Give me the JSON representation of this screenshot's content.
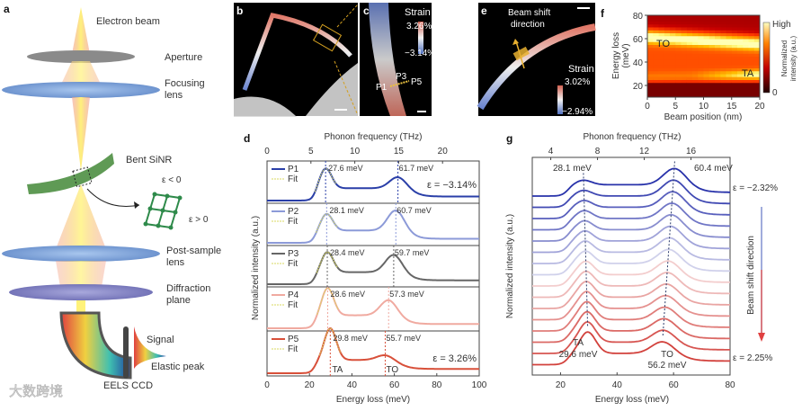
{
  "panels": {
    "a": "a",
    "b": "b",
    "c": "c",
    "d": "d",
    "e": "e",
    "f": "f",
    "g": "g"
  },
  "panel_a": {
    "electron_beam": "Electron beam",
    "aperture": "Aperture",
    "focusing_lens_1": "Focusing",
    "focusing_lens_2": "lens",
    "bent_sinr": "Bent SiNR",
    "strain_neg": "ε < 0",
    "strain_pos": "ε > 0",
    "post_sample_1": "Post-sample",
    "post_sample_2": "lens",
    "diffraction_1": "Diffraction",
    "diffraction_2": "plane",
    "signal": "Signal",
    "elastic_peak": "Elastic peak",
    "eels_ccd": "EELS CCD"
  },
  "watermark": "大数跨境",
  "panel_c": {
    "strain_title": "Strain",
    "strain_max": "3.26%",
    "strain_min": "−3.14%",
    "p1": "P1",
    "p3": "P3",
    "p5": "P5"
  },
  "panel_e": {
    "beam_shift_1": "Beam shift",
    "beam_shift_2": "direction",
    "strain_title": "Strain",
    "strain_max": "3.02%",
    "strain_min": "−2.94%"
  },
  "colors": {
    "blue": "#2a3fa8",
    "red": "#d8503a",
    "sinr_green": "#5f9a55"
  },
  "chart_data": [
    {
      "id": "d",
      "type": "line",
      "xlabel": "Energy loss (meV)",
      "ylabel": "Normalized intensity (a.u.)",
      "top_xlabel": "Phonon frequency (THz)",
      "xlim": [
        0,
        100
      ],
      "xticks": [
        "0",
        "20",
        "40",
        "60",
        "80",
        "100"
      ],
      "top_ticks": [
        {
          "thz": 0,
          "label": "0"
        },
        {
          "thz": 5,
          "label": "5"
        },
        {
          "thz": 10,
          "label": "10"
        },
        {
          "thz": 15,
          "label": "15"
        },
        {
          "thz": 20,
          "label": "20"
        }
      ],
      "fit_label": "Fit",
      "series": [
        {
          "name": "P1",
          "color": "#2a3fa8",
          "ta": 27.6,
          "to": 61.7,
          "ta_label": "27.6 meV",
          "to_label": "61.7 meV",
          "ta_amp": 0.6,
          "to_amp": 0.35,
          "strain": "ε = −3.14%"
        },
        {
          "name": "P2",
          "color": "#8c9ad8",
          "ta": 28.1,
          "to": 60.7,
          "ta_label": "28.1 meV",
          "to_label": "60.7 meV",
          "ta_amp": 0.5,
          "to_amp": 0.62
        },
        {
          "name": "P3",
          "color": "#666666",
          "ta": 28.4,
          "to": 59.7,
          "ta_label": "28.4 meV",
          "to_label": "59.7 meV",
          "ta_amp": 0.62,
          "to_amp": 0.55
        },
        {
          "name": "P4",
          "color": "#f0aaa0",
          "ta": 28.6,
          "to": 57.3,
          "ta_label": "28.6 meV",
          "to_label": "57.3 meV",
          "ta_amp": 0.78,
          "to_amp": 0.45
        },
        {
          "name": "P5",
          "color": "#d8503a",
          "ta": 29.8,
          "to": 55.7,
          "ta_label": "29.8 meV",
          "to_label": "55.7 meV",
          "ta_amp": 0.88,
          "to_amp": 0.15,
          "strain": "ε = 3.26%"
        }
      ],
      "mode_labels": {
        "ta": "TA",
        "to": "TO"
      }
    },
    {
      "id": "g",
      "type": "line",
      "xlabel": "Energy loss (meV)",
      "ylabel": "Normalized intensity (a.u.)",
      "top_xlabel": "Phonon frequency (THz)",
      "xlim": [
        10,
        80
      ],
      "xticks": [
        {
          "v": 20,
          "label": "20"
        },
        {
          "v": 40,
          "label": "40"
        },
        {
          "v": 60,
          "label": "60"
        },
        {
          "v": 80,
          "label": "80"
        }
      ],
      "top_ticks": [
        {
          "thz": 4,
          "label": "4"
        },
        {
          "thz": 8,
          "label": "8"
        },
        {
          "thz": 12,
          "label": "12"
        },
        {
          "thz": 16,
          "label": "16"
        }
      ],
      "n_curves": 16,
      "ta_start": 28.1,
      "ta_end": 29.6,
      "to_start": 60.4,
      "to_end": 56.2,
      "strain_start": "ε = −2.32%",
      "strain_end": "ε = 2.25%",
      "label_ta_start": "28.1 meV",
      "label_to_start": "60.4 meV",
      "label_ta": "TA",
      "label_ta_end": "29.6 meV",
      "label_to": "TO",
      "label_to_end": "56.2 meV",
      "arrow_label": "Beam shift direction"
    },
    {
      "id": "f",
      "type": "heatmap",
      "xlabel": "Beam position (nm)",
      "ylabel_1": "Energy loss",
      "ylabel_2": "(meV)",
      "xlim": [
        0,
        20
      ],
      "ylim": [
        10,
        80
      ],
      "xticks": [
        "0",
        "5",
        "10",
        "15",
        "20"
      ],
      "yticks": [
        {
          "v": 20,
          "label": "20"
        },
        {
          "v": 40,
          "label": "40"
        },
        {
          "v": 60,
          "label": "60"
        },
        {
          "v": 80,
          "label": "80"
        }
      ],
      "colorbar": {
        "high": "High",
        "low": "0",
        "label_1": "Normalized",
        "label_2": "intensity (a.u.)"
      },
      "annotations": {
        "to": "TO",
        "ta": "TA"
      }
    }
  ]
}
